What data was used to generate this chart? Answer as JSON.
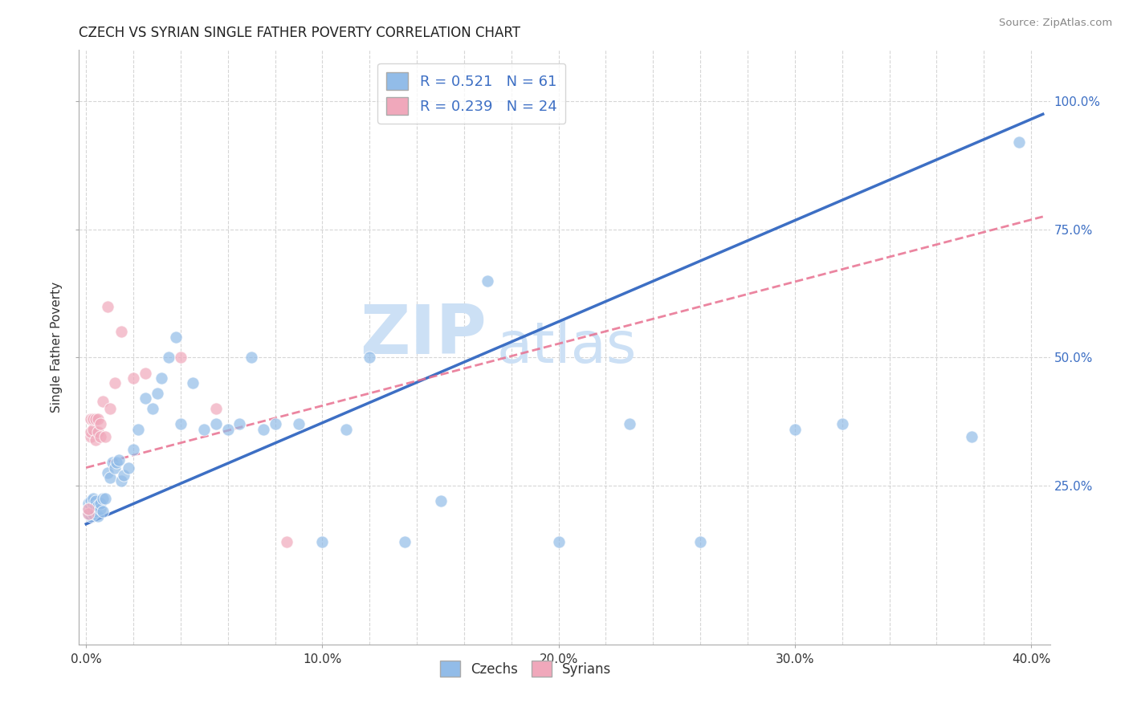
{
  "title": "CZECH VS SYRIAN SINGLE FATHER POVERTY CORRELATION CHART",
  "source": "Source: ZipAtlas.com",
  "xlabel_ticks": [
    "0.0%",
    "",
    "",
    "",
    "",
    "10.0%",
    "",
    "",
    "",
    "",
    "20.0%",
    "",
    "",
    "",
    "",
    "30.0%",
    "",
    "",
    "",
    "",
    "40.0%"
  ],
  "xlabel_tick_vals": [
    0.0,
    0.02,
    0.04,
    0.06,
    0.08,
    0.1,
    0.12,
    0.14,
    0.16,
    0.18,
    0.2,
    0.22,
    0.24,
    0.26,
    0.28,
    0.3,
    0.32,
    0.34,
    0.36,
    0.38,
    0.4
  ],
  "ylabel": "Single Father Poverty",
  "ylabel_ticks": [
    "25.0%",
    "50.0%",
    "75.0%",
    "100.0%"
  ],
  "ylabel_tick_vals": [
    0.25,
    0.5,
    0.75,
    1.0
  ],
  "xlim": [
    -0.003,
    0.408
  ],
  "ylim": [
    -0.06,
    1.1
  ],
  "legend_r_czech": "R = 0.521",
  "legend_n_czech": "N = 61",
  "legend_r_syrian": "R = 0.239",
  "legend_n_syrian": "N = 24",
  "czech_color": "#92bce8",
  "syrian_color": "#f0a8bb",
  "line_czech_color": "#3d6fc4",
  "line_syrian_color": "#e87090",
  "watermark_zip": "ZIP",
  "watermark_atlas": "atlas",
  "watermark_color": "#cce0f5",
  "czech_line_x0": 0.0,
  "czech_line_y0": 0.175,
  "czech_line_x1": 0.405,
  "czech_line_y1": 0.975,
  "syrian_line_x0": 0.0,
  "syrian_line_y0": 0.285,
  "syrian_line_x1": 0.405,
  "syrian_line_y1": 0.775,
  "czechs_x": [
    0.001,
    0.001,
    0.001,
    0.002,
    0.002,
    0.002,
    0.002,
    0.003,
    0.003,
    0.003,
    0.003,
    0.004,
    0.004,
    0.004,
    0.005,
    0.005,
    0.006,
    0.006,
    0.007,
    0.007,
    0.008,
    0.009,
    0.01,
    0.011,
    0.012,
    0.013,
    0.014,
    0.015,
    0.016,
    0.018,
    0.02,
    0.022,
    0.025,
    0.028,
    0.03,
    0.032,
    0.035,
    0.038,
    0.04,
    0.045,
    0.05,
    0.055,
    0.06,
    0.065,
    0.07,
    0.075,
    0.08,
    0.09,
    0.1,
    0.11,
    0.12,
    0.135,
    0.15,
    0.17,
    0.2,
    0.23,
    0.26,
    0.3,
    0.32,
    0.375,
    0.395
  ],
  "czechs_y": [
    0.195,
    0.205,
    0.215,
    0.19,
    0.2,
    0.21,
    0.22,
    0.195,
    0.205,
    0.215,
    0.225,
    0.2,
    0.21,
    0.22,
    0.19,
    0.21,
    0.205,
    0.215,
    0.2,
    0.225,
    0.225,
    0.275,
    0.265,
    0.295,
    0.285,
    0.295,
    0.3,
    0.26,
    0.27,
    0.285,
    0.32,
    0.36,
    0.42,
    0.4,
    0.43,
    0.46,
    0.5,
    0.54,
    0.37,
    0.45,
    0.36,
    0.37,
    0.36,
    0.37,
    0.5,
    0.36,
    0.37,
    0.37,
    0.14,
    0.36,
    0.5,
    0.14,
    0.22,
    0.65,
    0.14,
    0.37,
    0.14,
    0.36,
    0.37,
    0.345,
    0.92
  ],
  "syrians_x": [
    0.001,
    0.001,
    0.002,
    0.002,
    0.002,
    0.003,
    0.003,
    0.004,
    0.004,
    0.005,
    0.005,
    0.006,
    0.006,
    0.007,
    0.008,
    0.009,
    0.01,
    0.012,
    0.015,
    0.02,
    0.025,
    0.04,
    0.055,
    0.085
  ],
  "syrians_y": [
    0.195,
    0.205,
    0.345,
    0.355,
    0.38,
    0.36,
    0.38,
    0.34,
    0.38,
    0.355,
    0.38,
    0.345,
    0.37,
    0.415,
    0.345,
    0.6,
    0.4,
    0.45,
    0.55,
    0.46,
    0.47,
    0.5,
    0.4,
    0.14
  ]
}
